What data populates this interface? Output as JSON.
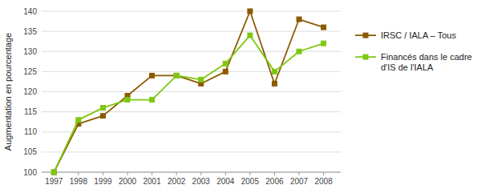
{
  "chart_data": {
    "type": "line",
    "ylabel": "Augmentation en pourcentage",
    "x": [
      1997,
      1998,
      1999,
      2000,
      2001,
      2002,
      2003,
      2004,
      2005,
      2006,
      2007,
      2008
    ],
    "xlim": [
      1996.5,
      2008.7
    ],
    "xticks": [
      1997,
      1998,
      1999,
      2000,
      2001,
      2002,
      2003,
      2004,
      2005,
      2006,
      2007,
      2008
    ],
    "ylim": [
      100,
      140
    ],
    "yticks": [
      100,
      105,
      110,
      115,
      120,
      125,
      130,
      135,
      140
    ],
    "grid": true,
    "legend": "right",
    "series": [
      {
        "name": "IRSC / IALA – Tous",
        "color": "#8B5A00",
        "marker": "square",
        "values": [
          100,
          112,
          114,
          119,
          124,
          124,
          122,
          125,
          140,
          122,
          138,
          136
        ]
      },
      {
        "name": "Financés dans le cadre\nd'IS de l'IALA",
        "color": "#7EC810",
        "marker": "square",
        "values": [
          100,
          113,
          116,
          118,
          118,
          124,
          123,
          127,
          134,
          125,
          130,
          132
        ]
      }
    ]
  }
}
